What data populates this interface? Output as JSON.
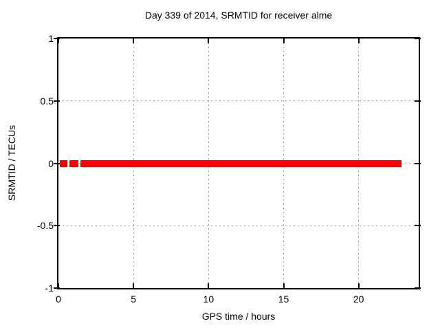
{
  "window": {
    "background": "#ffffff"
  },
  "chart_data": {
    "type": "line",
    "title": "Day 339 of 2014, SRMTID for receiver alme",
    "xlabel": "GPS time / hours",
    "ylabel": "SRMTID / TECUs",
    "xlim": [
      0,
      24
    ],
    "ylim": [
      -1,
      1
    ],
    "xticks": [
      0,
      5,
      10,
      15,
      20
    ],
    "xtick_labels": [
      "0",
      "5",
      "10",
      "15",
      "20"
    ],
    "yticks": [
      1,
      0.5,
      0,
      -0.5,
      -1
    ],
    "ytick_labels": [
      "1",
      "0.5",
      "0",
      "-0.5",
      "-1"
    ],
    "grid": "dotted",
    "grid_color": "#9b9b9b",
    "legend": "none",
    "series": [
      {
        "name": "SRMTID",
        "color": "#ff0000",
        "marker": "filled-square",
        "value_tecus": 0,
        "segments_hours": [
          [
            0.1,
            0.61
          ],
          [
            0.74,
            1.33
          ],
          [
            1.47,
            22.85
          ]
        ]
      }
    ]
  }
}
